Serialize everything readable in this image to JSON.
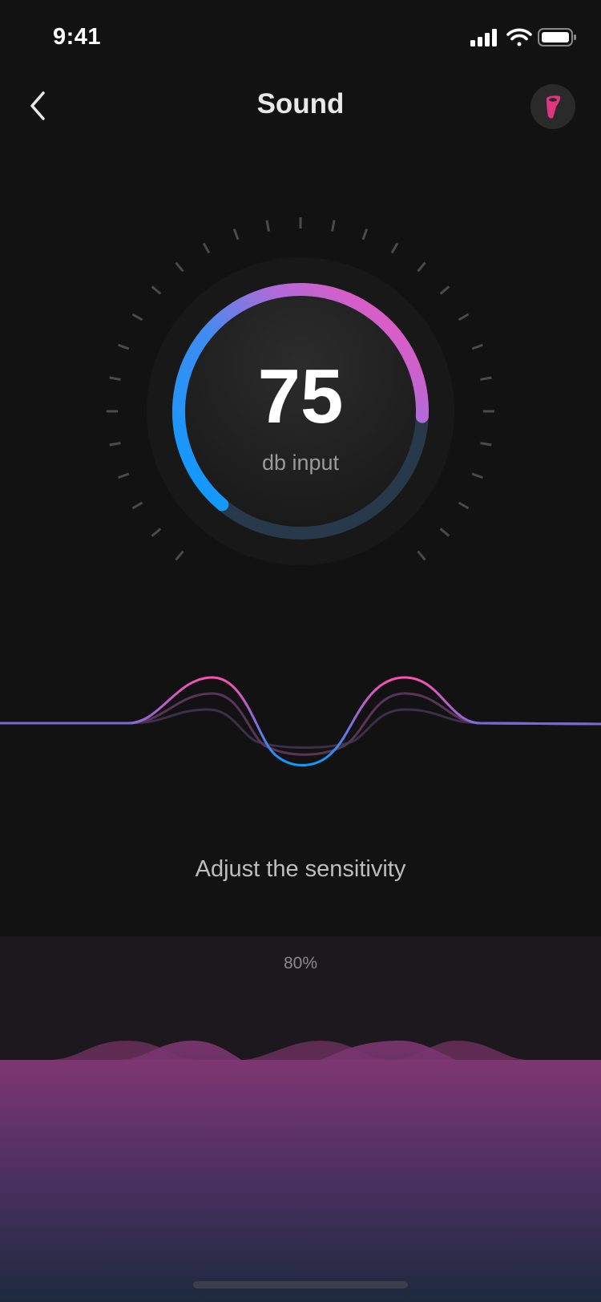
{
  "status_bar": {
    "time": "9:41",
    "icons": [
      "signal-icon",
      "wifi-icon",
      "battery-icon"
    ]
  },
  "header": {
    "title": "Sound",
    "back_icon": "chevron-left-icon",
    "profile_icon": "device-icon"
  },
  "gauge": {
    "value": "75",
    "unit": "db input",
    "fill_fraction": 0.75,
    "colors": {
      "start": "#0a9bff",
      "end": "#ff4fb6"
    }
  },
  "sensitivity": {
    "label": "Adjust the sensitivity",
    "value": "80%",
    "level_percent": 80
  },
  "colors": {
    "background": "#121212",
    "accent_pink": "#ff4fb6",
    "accent_blue": "#0a9bff"
  }
}
